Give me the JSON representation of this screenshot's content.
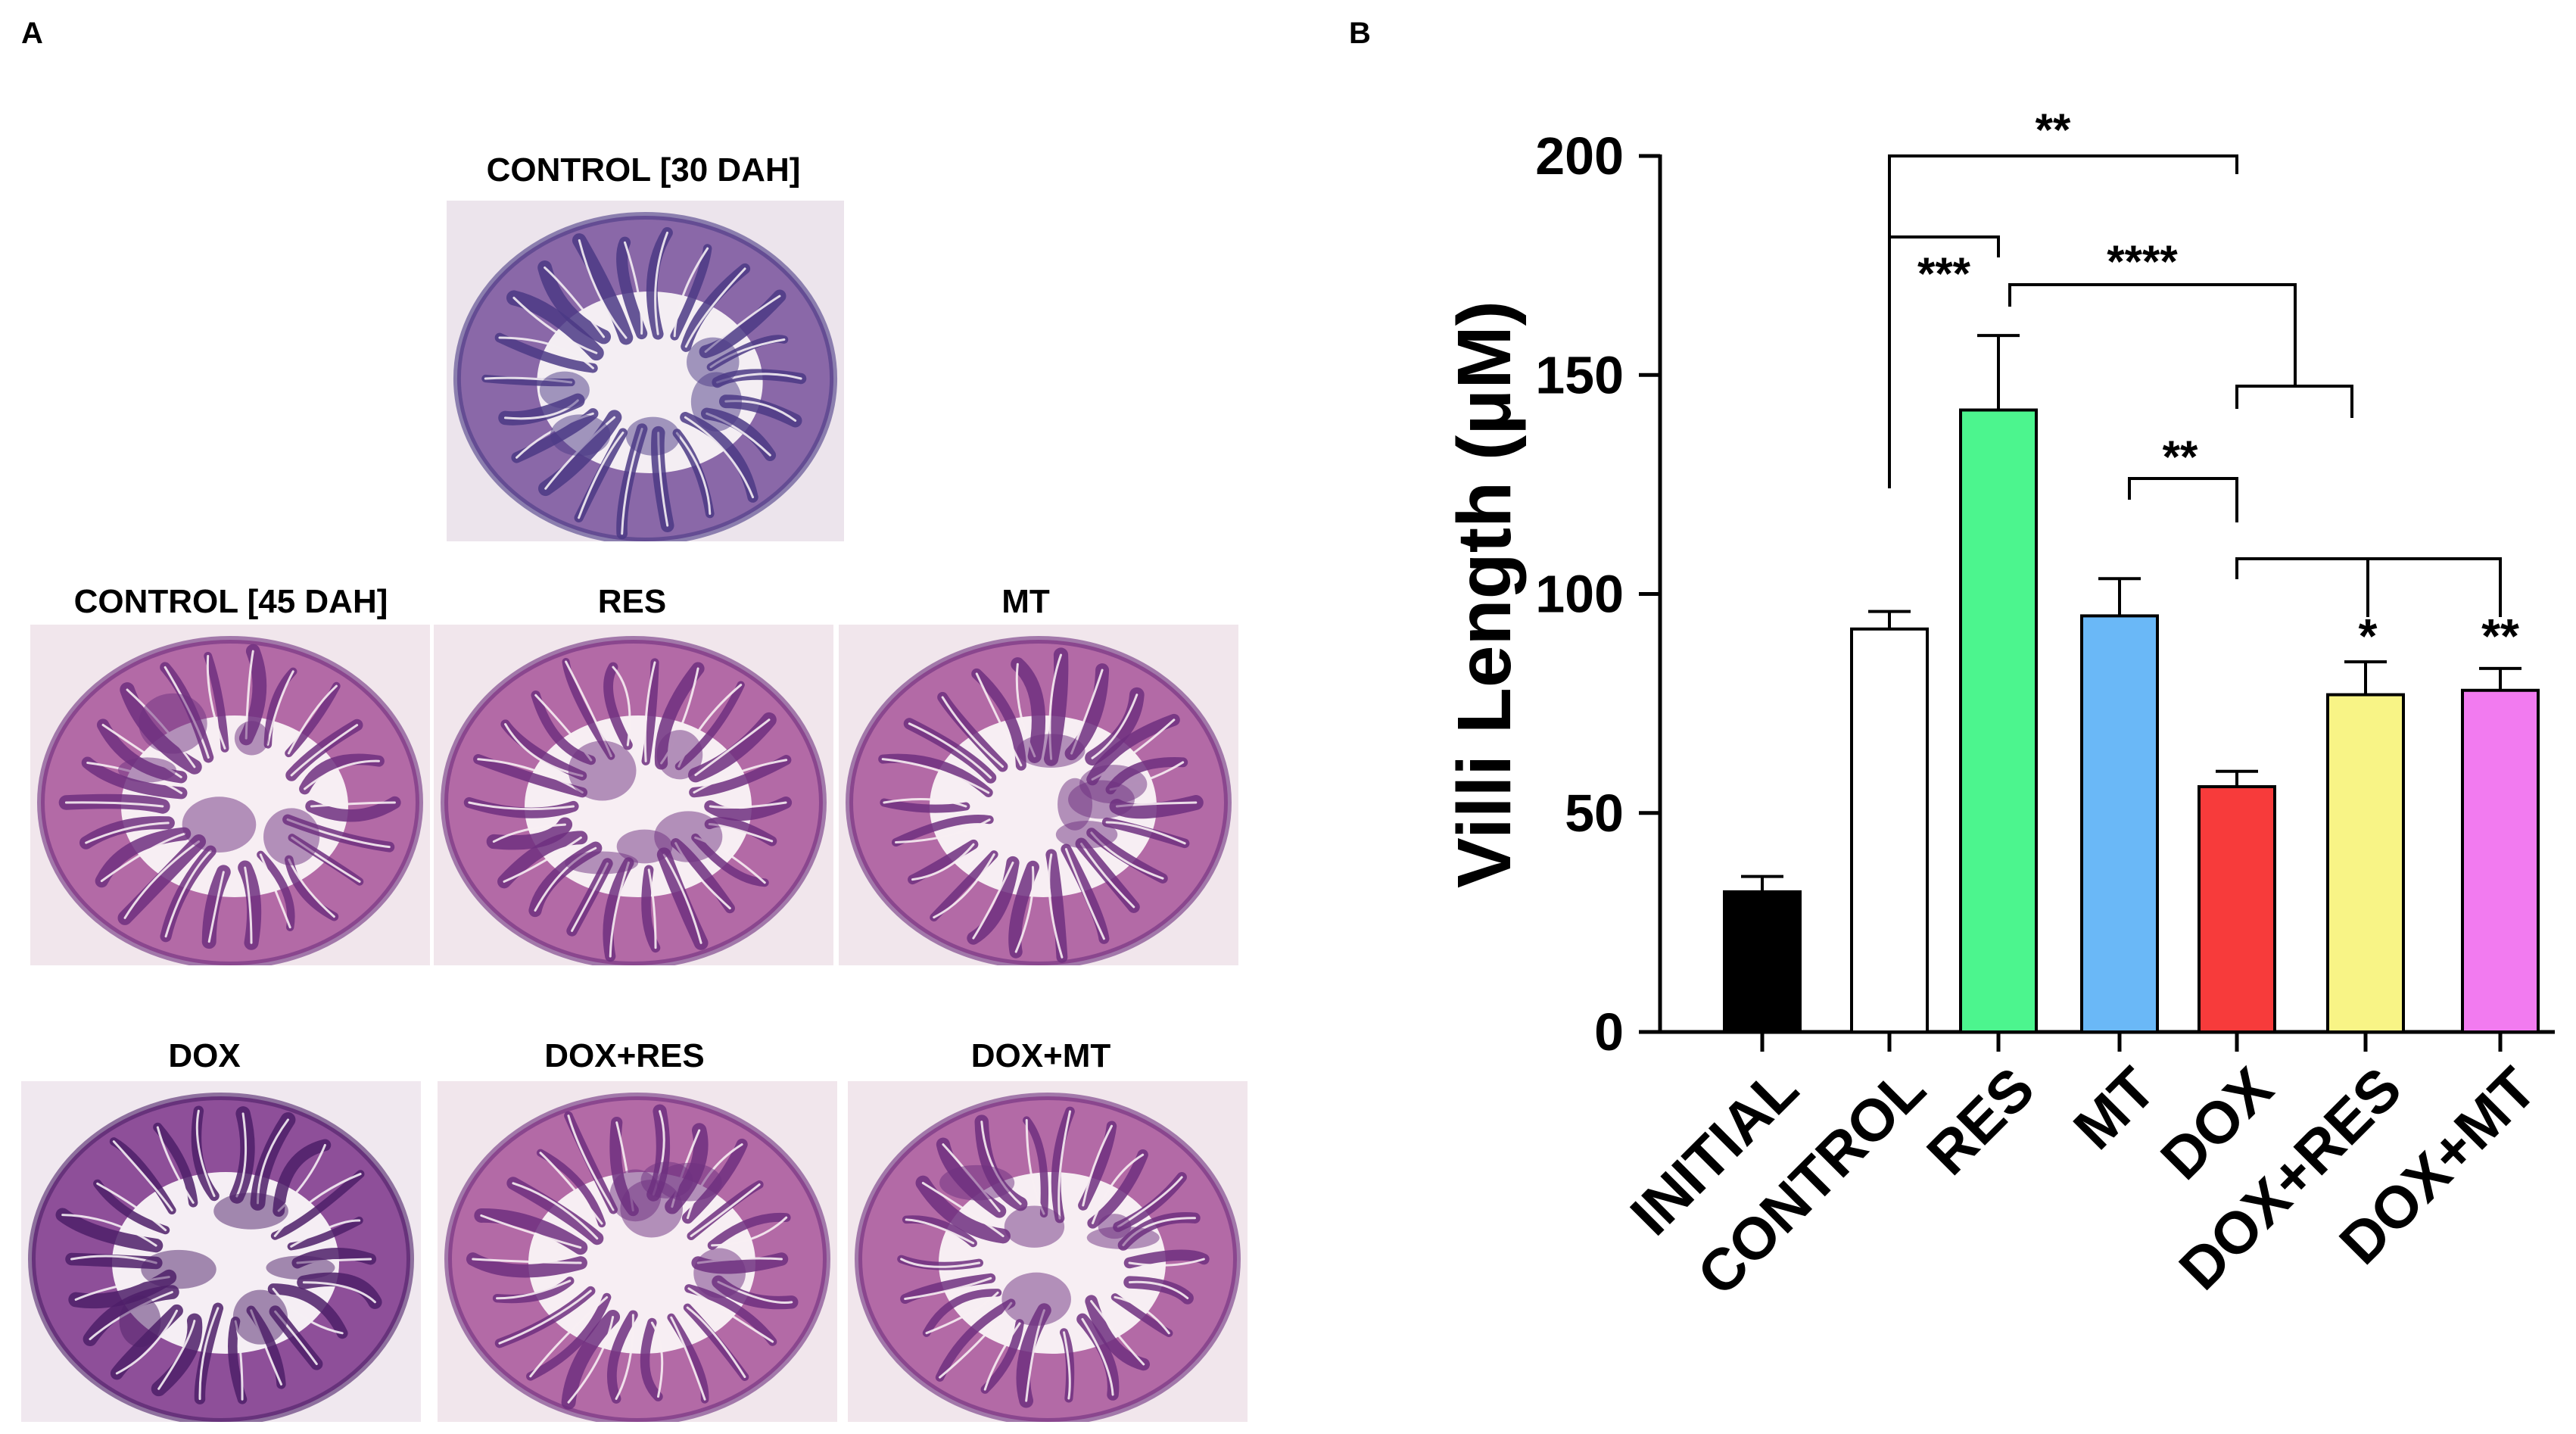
{
  "panel_a": {
    "letter": "A",
    "images": [
      {
        "label": "CONTROL [30 DAH]",
        "tone": "blue"
      },
      {
        "label": "CONTROL [45 DAH]",
        "tone": "pink"
      },
      {
        "label": "RES",
        "tone": "pink"
      },
      {
        "label": "MT",
        "tone": "pink"
      },
      {
        "label": "DOX",
        "tone": "purple"
      },
      {
        "label": "DOX+RES",
        "tone": "pink"
      },
      {
        "label": "DOX+MT",
        "tone": "pink"
      }
    ]
  },
  "panel_b": {
    "letter": "B"
  },
  "chart_data": {
    "type": "bar",
    "ylabel": "Villi Length (μM)",
    "ylim": [
      0,
      200
    ],
    "yticks": [
      "0",
      "50",
      "100",
      "150",
      "200"
    ],
    "categories": [
      "INITIAL",
      "CONTROL",
      "RES",
      "MT",
      "DOX",
      "DOX+RES",
      "DOX+MT"
    ],
    "values": [
      32,
      92,
      142,
      95,
      56,
      77,
      78
    ],
    "errors": [
      3.5,
      4,
      17,
      8.5,
      3.5,
      7.5,
      5
    ],
    "colors": [
      "#000000",
      "#ffffff",
      "#4cf58e",
      "#6ab8f7",
      "#f73b3b",
      "#f8f486",
      "#f27bf0"
    ],
    "significance": [
      {
        "label": "**",
        "pair": [
          "CONTROL",
          "DOX"
        ]
      },
      {
        "label": "***",
        "pair": [
          "CONTROL",
          "RES"
        ]
      },
      {
        "label": "****",
        "pair": [
          "RES",
          "DOX vs DOX+RES"
        ]
      },
      {
        "label": "**",
        "pair": [
          "MT",
          "DOX"
        ]
      },
      {
        "label": "*",
        "pair": [
          "DOX",
          "DOX+RES"
        ]
      },
      {
        "label": "**",
        "pair": [
          "DOX",
          "DOX+MT"
        ]
      }
    ]
  }
}
